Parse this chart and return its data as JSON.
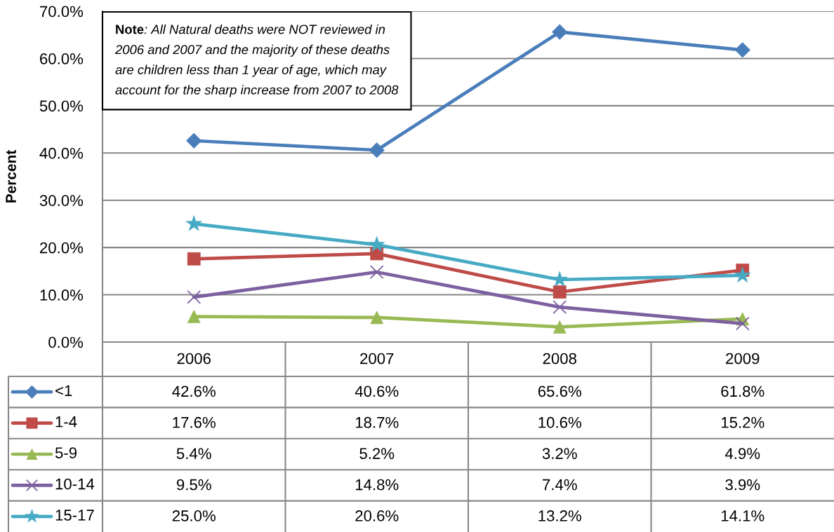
{
  "chart_data": {
    "type": "line",
    "ylabel": "Percent",
    "categories": [
      "2006",
      "2007",
      "2008",
      "2009"
    ],
    "ylim": [
      0,
      70
    ],
    "yticks": [
      {
        "value": 0,
        "label": "0.0%"
      },
      {
        "value": 10,
        "label": "10.0%"
      },
      {
        "value": 20,
        "label": "20.0%"
      },
      {
        "value": 30,
        "label": "30.0%"
      },
      {
        "value": 40,
        "label": "40.0%"
      },
      {
        "value": 50,
        "label": "50.0%"
      },
      {
        "value": 60,
        "label": "60.0%"
      },
      {
        "value": 70,
        "label": "70.0%"
      }
    ],
    "grid": "y",
    "legend": "bottom",
    "line_style": "solid",
    "annotations": [
      "Note: All Natural deaths were NOT reviewed in 2006 and 2007 and the majority of these deaths are children less than 1 year of age, which may account for the sharp increase from 2007 to 2008"
    ],
    "series": [
      {
        "name": "<1",
        "color": "#4a7ebb",
        "marker": "diamond",
        "values": [
          42.6,
          40.6,
          65.6,
          61.8
        ],
        "value_labels": [
          "42.6%",
          "40.6%",
          "65.6%",
          "61.8%"
        ]
      },
      {
        "name": "1-4",
        "color": "#be4b48",
        "marker": "square",
        "values": [
          17.6,
          18.7,
          10.6,
          15.2
        ],
        "value_labels": [
          "17.6%",
          "18.7%",
          "10.6%",
          "15.2%"
        ]
      },
      {
        "name": "5-9",
        "color": "#98b954",
        "marker": "triangle",
        "values": [
          5.4,
          5.2,
          3.2,
          4.9
        ],
        "value_labels": [
          "5.4%",
          "5.2%",
          "3.2%",
          "4.9%"
        ]
      },
      {
        "name": "10-14",
        "color": "#7d60a0",
        "marker": "cross",
        "values": [
          9.5,
          14.8,
          7.4,
          3.9
        ],
        "value_labels": [
          "9.5%",
          "14.8%",
          "7.4%",
          "3.9%"
        ]
      },
      {
        "name": "15-17",
        "color": "#46aac5",
        "marker": "star",
        "values": [
          25.0,
          20.6,
          13.2,
          14.1
        ],
        "value_labels": [
          "25.0%",
          "20.6%",
          "13.2%",
          "14.1%"
        ]
      }
    ]
  }
}
